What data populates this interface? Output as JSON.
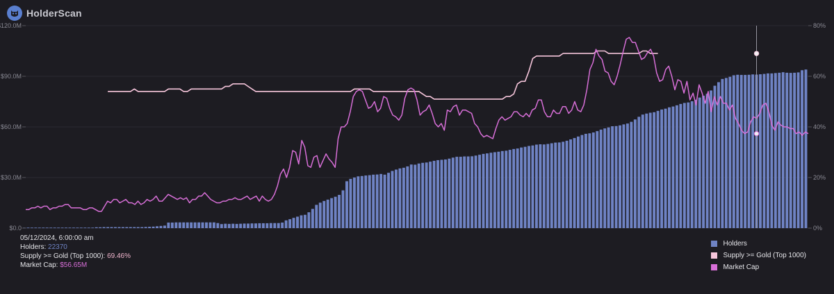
{
  "brand": {
    "name": "HolderScan",
    "logo_icon": "owl-logo-icon"
  },
  "tooltip": {
    "date": "05/12/2024, 6:00:00 am",
    "holders_label": "Holders:",
    "holders_value": "22370",
    "supply_label": "Supply >= Gold (Top 1000):",
    "supply_value": "69.46%",
    "cap_label": "Market Cap:",
    "cap_value": "$56.65M"
  },
  "legend": [
    {
      "label": "Holders",
      "color": "#6f83c4"
    },
    {
      "label": "Supply >= Gold (Top 1000)",
      "color": "#f7c6dc"
    },
    {
      "label": "Market Cap",
      "color": "#d86fd8"
    }
  ],
  "chart_data": {
    "type": "bar",
    "left_axis": {
      "ticks": [
        "$0.0",
        "$30.0M",
        "$60.0M",
        "$90.0M",
        "$120.0M"
      ],
      "range": [
        0,
        120
      ]
    },
    "right_axis": {
      "ticks": [
        "0%",
        "20%",
        "40%",
        "60%",
        "80%"
      ],
      "range": [
        0,
        80
      ]
    },
    "series": [
      {
        "name": "Holders",
        "kind": "bar",
        "axis": "left",
        "color": "#6f83c4",
        "values": [
          0.3,
          0.3,
          0.3,
          0.3,
          0.3,
          0.3,
          0.3,
          0.3,
          0.3,
          0.3,
          0.3,
          0.3,
          0.3,
          0.3,
          0.3,
          0.3,
          0.3,
          0.3,
          0.3,
          0.5,
          0.5,
          0.6,
          0.6,
          0.6,
          0.6,
          0.6,
          0.6,
          0.6,
          0.6,
          0.6,
          0.6,
          0.6,
          0.7,
          0.8,
          0.9,
          1.1,
          1.3,
          1.5,
          3.3,
          3.3,
          3.4,
          3.4,
          3.4,
          3.4,
          3.4,
          3.4,
          3.4,
          3.4,
          3.4,
          3.4,
          3.4,
          3.0,
          2.4,
          2.6,
          2.5,
          2.6,
          2.5,
          2.6,
          2.7,
          2.7,
          2.8,
          2.8,
          2.9,
          2.9,
          2.9,
          3.0,
          3.0,
          3.0,
          3.3,
          4.6,
          5.3,
          6.1,
          6.8,
          7.6,
          7.9,
          9.4,
          11.4,
          13.8,
          15.1,
          16.1,
          16.9,
          17.8,
          18.6,
          19.7,
          22.4,
          27.8,
          29.2,
          30.0,
          30.7,
          30.9,
          31.2,
          31.4,
          31.7,
          31.8,
          32.1,
          31.7,
          32.8,
          33.9,
          34.7,
          35.4,
          35.8,
          36.6,
          37.7,
          37.6,
          38.3,
          38.7,
          38.9,
          39.4,
          39.9,
          40.3,
          40.5,
          40.7,
          41.2,
          41.8,
          42.3,
          42.3,
          42.5,
          42.5,
          42.6,
          43.0,
          43.5,
          44.0,
          44.3,
          44.7,
          45.0,
          45.3,
          45.7,
          45.9,
          46.4,
          46.9,
          47.2,
          47.8,
          48.2,
          48.7,
          49.0,
          49.5,
          49.7,
          49.6,
          49.9,
          50.3,
          50.7,
          50.8,
          51.2,
          51.8,
          52.6,
          53.4,
          54.3,
          55.2,
          55.9,
          56.2,
          56.7,
          57.5,
          58.4,
          59.1,
          59.7,
          60.4,
          60.5,
          60.9,
          61.5,
          62.0,
          63.0,
          64.4,
          66.0,
          67.3,
          67.9,
          68.4,
          68.7,
          69.5,
          70.3,
          70.8,
          71.6,
          72.1,
          72.8,
          73.6,
          74.2,
          74.5,
          75.2,
          76.1,
          77.4,
          78.5,
          79.6,
          81.6,
          84.4,
          86.5,
          88.4,
          89.0,
          89.7,
          90.6,
          90.9,
          90.8,
          90.8,
          90.9,
          91.1,
          91.0,
          91.2,
          91.4,
          91.7,
          91.7,
          91.9,
          92.1,
          92.4,
          92.1,
          92.0,
          92.1,
          92.3,
          93.6,
          94.0
        ]
      },
      {
        "name": "Supply >= Gold (Top 1000)",
        "kind": "line",
        "axis": "right",
        "color": "#f7c6dc",
        "x_start_index": 22,
        "values": [
          54,
          54,
          54,
          54,
          54,
          54,
          54,
          55,
          54,
          54,
          54,
          54,
          54,
          54,
          54,
          54,
          55,
          55,
          55,
          55,
          54,
          54,
          55,
          55,
          55,
          55,
          55,
          55,
          55,
          55,
          55,
          56,
          56,
          57,
          57,
          57,
          57,
          56,
          55,
          54,
          54,
          54,
          54,
          54,
          54,
          54,
          54,
          54,
          54,
          54,
          54,
          54,
          54,
          54,
          54,
          54,
          54,
          54,
          54,
          54,
          54,
          54,
          54,
          54,
          54,
          55,
          55,
          55,
          55,
          55,
          54,
          54,
          54,
          54,
          54,
          54,
          54,
          54,
          54,
          54,
          54,
          54,
          54,
          53,
          52,
          52,
          51,
          51,
          51,
          51,
          51,
          51,
          51,
          51,
          51,
          51,
          51,
          51,
          51,
          51,
          51,
          51,
          51,
          51,
          51,
          52,
          52,
          53,
          57,
          58,
          58,
          62,
          67,
          68,
          68,
          68,
          68,
          68,
          68,
          68,
          69,
          69,
          69,
          69,
          69,
          69,
          69,
          69,
          69,
          70,
          70,
          70,
          69,
          69,
          69,
          69,
          69,
          69,
          69,
          69,
          69,
          70,
          70,
          69,
          69,
          69
        ]
      },
      {
        "name": "Market Cap",
        "kind": "line",
        "axis": "left",
        "color": "#d86fd8",
        "values": [
          11,
          11,
          12,
          12,
          13,
          12,
          13,
          13,
          11,
          12,
          12,
          13,
          13,
          14,
          14,
          12,
          12,
          12,
          12,
          11,
          11,
          12,
          12,
          11,
          10,
          10,
          13,
          16,
          15,
          17,
          17,
          15,
          16,
          17,
          15,
          15,
          14,
          16,
          14,
          15,
          17,
          16,
          17,
          19,
          16,
          16,
          18,
          20,
          19,
          18,
          17,
          18,
          17,
          18,
          15,
          17,
          17,
          19,
          19,
          21,
          19,
          17,
          16,
          15,
          15,
          16,
          16,
          17,
          17,
          18,
          17,
          17,
          18,
          19,
          17,
          18,
          19,
          16,
          19,
          17,
          16,
          17,
          20,
          25,
          32,
          35,
          30,
          36,
          46,
          45,
          38,
          52,
          48,
          37,
          36,
          42,
          43,
          36,
          40,
          44,
          41,
          39,
          36,
          53,
          60,
          60,
          62,
          69,
          78,
          81,
          82,
          81,
          76,
          71,
          72,
          75,
          69,
          71,
          78,
          77,
          71,
          67,
          66,
          64,
          67,
          77,
          82,
          83,
          82,
          76,
          67,
          69,
          70,
          73,
          68,
          62,
          60,
          62,
          58,
          70,
          69,
          72,
          73,
          67,
          70,
          70,
          69,
          68,
          62,
          60,
          56,
          54,
          55,
          54,
          53,
          59,
          64,
          66,
          64,
          65,
          66,
          69,
          69,
          67,
          66,
          68,
          66,
          70,
          71,
          76,
          76,
          69,
          66,
          66,
          70,
          68,
          68,
          72,
          72,
          68,
          70,
          75,
          70,
          69,
          73,
          82,
          94,
          98,
          106,
          102,
          100,
          93,
          92,
          87,
          85,
          90,
          97,
          105,
          112,
          113,
          110,
          110,
          105,
          100,
          101,
          104,
          106,
          102,
          92,
          87,
          88,
          94,
          96,
          90,
          82,
          88,
          87,
          80,
          87,
          76,
          80,
          73,
          85,
          80,
          74,
          81,
          69,
          78,
          73,
          78,
          74,
          74,
          70,
          73,
          65,
          62,
          58,
          56,
          57,
          63,
          66,
          65,
          68,
          73,
          74,
          69,
          61,
          58,
          63,
          61,
          60,
          60,
          59,
          59,
          56,
          57,
          55,
          57,
          56
        ]
      }
    ],
    "cursor": {
      "bar_index": 193
    }
  }
}
